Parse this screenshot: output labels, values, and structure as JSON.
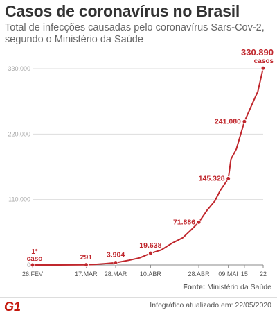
{
  "title": "Casos de coronavírus no Brasil",
  "subtitle": "Total de infecções causadas pelo coronavírus Sars-Cov-2, segundo o Ministério da Saúde",
  "source_label": "Fonte:",
  "source_value": "Ministério da Saúde",
  "logo": "G1",
  "updated": "Infográfico atualizado em: 22/05/2020",
  "colors": {
    "series": "#c0272d",
    "axis": "#bbbbbb",
    "text": "#333333"
  },
  "chart_data": {
    "type": "line",
    "title": "Casos de coronavírus no Brasil",
    "xlabel": "",
    "ylabel": "",
    "ylim": [
      0,
      330000
    ],
    "yticks": [
      0,
      110000,
      220000,
      330000
    ],
    "ytick_labels": [
      "0",
      "110.000",
      "220.000",
      "330.000"
    ],
    "x_start": "26/02/2020",
    "x_end": "22/05/2020",
    "xticks": [
      {
        "date": "26/02/2020",
        "label": "26.FEV"
      },
      {
        "date": "17/03/2020",
        "label": "17.MAR"
      },
      {
        "date": "28/03/2020",
        "label": "28.MAR"
      },
      {
        "date": "10/04/2020",
        "label": "10.ABR"
      },
      {
        "date": "28/04/2020",
        "label": "28.ABR"
      },
      {
        "date": "09/05/2020",
        "label": "09.MAI"
      },
      {
        "date": "15/05/2020",
        "label": "15"
      },
      {
        "date": "22/05/2020",
        "label": "22"
      }
    ],
    "series": [
      {
        "values": [
          {
            "date": "26/02/2020",
            "y": 1
          },
          {
            "date": "07/03/2020",
            "y": 19
          },
          {
            "date": "12/03/2020",
            "y": 77
          },
          {
            "date": "17/03/2020",
            "y": 291
          },
          {
            "date": "20/03/2020",
            "y": 904
          },
          {
            "date": "24/03/2020",
            "y": 2201
          },
          {
            "date": "28/03/2020",
            "y": 3904
          },
          {
            "date": "02/04/2020",
            "y": 7910
          },
          {
            "date": "06/04/2020",
            "y": 12056
          },
          {
            "date": "10/04/2020",
            "y": 19638
          },
          {
            "date": "14/04/2020",
            "y": 25262
          },
          {
            "date": "18/04/2020",
            "y": 36599
          },
          {
            "date": "22/04/2020",
            "y": 45757
          },
          {
            "date": "25/04/2020",
            "y": 58509
          },
          {
            "date": "28/04/2020",
            "y": 71886
          },
          {
            "date": "01/05/2020",
            "y": 91589
          },
          {
            "date": "04/05/2020",
            "y": 107780
          },
          {
            "date": "06/05/2020",
            "y": 125218
          },
          {
            "date": "09/05/2020",
            "y": 145328
          },
          {
            "date": "10/05/2020",
            "y": 178000
          },
          {
            "date": "12/05/2020",
            "y": 195000
          },
          {
            "date": "15/05/2020",
            "y": 241080
          },
          {
            "date": "18/05/2020",
            "y": 271628
          },
          {
            "date": "20/05/2020",
            "y": 291579
          },
          {
            "date": "22/05/2020",
            "y": 330890
          }
        ]
      }
    ],
    "labeled_points": [
      {
        "date": "26/02/2020",
        "y": 1,
        "label": "1°",
        "label2": "caso",
        "pos": "above"
      },
      {
        "date": "17/03/2020",
        "y": 291,
        "label": "291",
        "pos": "above"
      },
      {
        "date": "28/03/2020",
        "y": 3904,
        "label": "3.904",
        "pos": "above"
      },
      {
        "date": "10/04/2020",
        "y": 19638,
        "label": "19.638",
        "pos": "above"
      },
      {
        "date": "28/04/2020",
        "y": 71886,
        "label": "71.886",
        "pos": "left"
      },
      {
        "date": "09/05/2020",
        "y": 145328,
        "label": "145.328",
        "pos": "left"
      },
      {
        "date": "15/05/2020",
        "y": 241080,
        "label": "241.080",
        "pos": "left"
      },
      {
        "date": "22/05/2020",
        "y": 330890,
        "label": "330.890",
        "label2": "casos",
        "pos": "above"
      }
    ]
  }
}
